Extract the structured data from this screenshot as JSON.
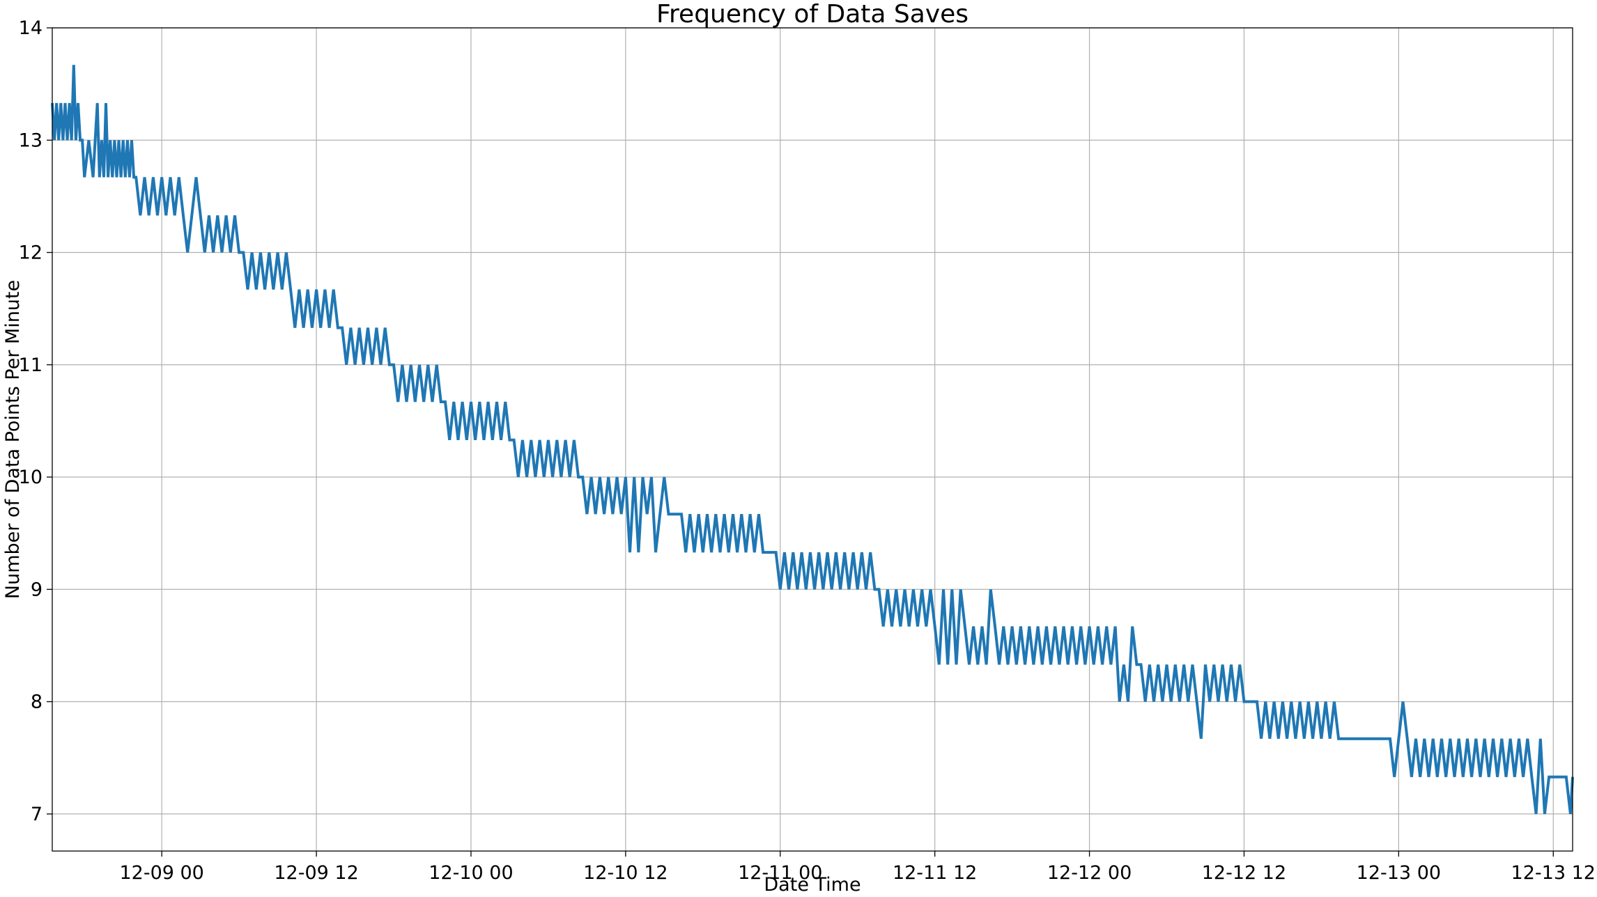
{
  "chart_data": {
    "type": "line",
    "title": "Frequency of Data Saves",
    "xlabel": "Date Time",
    "ylabel": "Number of Data Points Per Minute",
    "x_axis_type": "datetime",
    "xlim": [
      "2024-12-08 15:30",
      "2024-12-13 13:30"
    ],
    "ylim": [
      6.67,
      14
    ],
    "grid": true,
    "legend": "none",
    "x_ticks": [
      {
        "at": "2024-12-09 00:00",
        "label": "12-09 00"
      },
      {
        "at": "2024-12-09 12:00",
        "label": "12-09 12"
      },
      {
        "at": "2024-12-10 00:00",
        "label": "12-10 00"
      },
      {
        "at": "2024-12-10 12:00",
        "label": "12-10 12"
      },
      {
        "at": "2024-12-11 00:00",
        "label": "12-11 00"
      },
      {
        "at": "2024-12-11 12:00",
        "label": "12-11 12"
      },
      {
        "at": "2024-12-12 00:00",
        "label": "12-12 00"
      },
      {
        "at": "2024-12-12 12:00",
        "label": "12-12 12"
      },
      {
        "at": "2024-12-13 00:00",
        "label": "12-13 00"
      },
      {
        "at": "2024-12-13 12:00",
        "label": "12-13 12"
      }
    ],
    "y_ticks": [
      {
        "value": 7,
        "label": "7"
      },
      {
        "value": 8,
        "label": "8"
      },
      {
        "value": 9,
        "label": "9"
      },
      {
        "value": 10,
        "label": "10"
      },
      {
        "value": 11,
        "label": "11"
      },
      {
        "value": 12,
        "label": "12"
      },
      {
        "value": 13,
        "label": "13"
      },
      {
        "value": 14,
        "label": "14"
      }
    ],
    "series": [
      {
        "color": "#1f77b4",
        "x": [
          "2024-12-08 15:30",
          "2024-12-08 15:40",
          "2024-12-08 15:50",
          "2024-12-08 16:00",
          "2024-12-08 16:10",
          "2024-12-08 16:20",
          "2024-12-08 16:30",
          "2024-12-08 16:40",
          "2024-12-08 16:50",
          "2024-12-08 17:00",
          "2024-12-08 17:10",
          "2024-12-08 17:15",
          "2024-12-08 17:20",
          "2024-12-08 17:30",
          "2024-12-08 17:40",
          "2024-12-08 17:50",
          "2024-12-08 18:00",
          "2024-12-08 18:20",
          "2024-12-08 18:40",
          "2024-12-08 18:50",
          "2024-12-08 19:00",
          "2024-12-08 19:10",
          "2024-12-08 19:20",
          "2024-12-08 19:30",
          "2024-12-08 19:40",
          "2024-12-08 19:50",
          "2024-12-08 20:00",
          "2024-12-08 20:10",
          "2024-12-08 20:20",
          "2024-12-08 20:30",
          "2024-12-08 20:40",
          "2024-12-08 20:50",
          "2024-12-08 21:00",
          "2024-12-08 21:10",
          "2024-12-08 21:20",
          "2024-12-08 21:30",
          "2024-12-08 21:40",
          "2024-12-08 21:50",
          "2024-12-08 22:00",
          "2024-12-08 22:20",
          "2024-12-08 22:40",
          "2024-12-08 23:00",
          "2024-12-08 23:20",
          "2024-12-08 23:40",
          "2024-12-09 00:00",
          "2024-12-09 00:20",
          "2024-12-09 00:40",
          "2024-12-09 01:00",
          "2024-12-09 01:20",
          "2024-12-09 01:40",
          "2024-12-09 02:00",
          "2024-12-09 02:20",
          "2024-12-09 02:40",
          "2024-12-09 03:00",
          "2024-12-09 03:20",
          "2024-12-09 03:40",
          "2024-12-09 04:00",
          "2024-12-09 04:20",
          "2024-12-09 04:40",
          "2024-12-09 05:00",
          "2024-12-09 05:20",
          "2024-12-09 05:40",
          "2024-12-09 06:00",
          "2024-12-09 06:20",
          "2024-12-09 06:40",
          "2024-12-09 07:00",
          "2024-12-09 07:20",
          "2024-12-09 07:40",
          "2024-12-09 08:00",
          "2024-12-09 08:20",
          "2024-12-09 08:40",
          "2024-12-09 09:00",
          "2024-12-09 09:20",
          "2024-12-09 09:40",
          "2024-12-09 10:00",
          "2024-12-09 10:20",
          "2024-12-09 10:40",
          "2024-12-09 11:00",
          "2024-12-09 11:20",
          "2024-12-09 11:40",
          "2024-12-09 12:00",
          "2024-12-09 12:20",
          "2024-12-09 12:40",
          "2024-12-09 13:00",
          "2024-12-09 13:20",
          "2024-12-09 13:40",
          "2024-12-09 14:00",
          "2024-12-09 14:20",
          "2024-12-09 14:40",
          "2024-12-09 15:00",
          "2024-12-09 15:20",
          "2024-12-09 15:40",
          "2024-12-09 16:00",
          "2024-12-09 16:20",
          "2024-12-09 16:40",
          "2024-12-09 17:00",
          "2024-12-09 17:20",
          "2024-12-09 17:40",
          "2024-12-09 18:00",
          "2024-12-09 18:20",
          "2024-12-09 18:40",
          "2024-12-09 19:00",
          "2024-12-09 19:20",
          "2024-12-09 19:40",
          "2024-12-09 20:00",
          "2024-12-09 20:20",
          "2024-12-09 20:40",
          "2024-12-09 21:00",
          "2024-12-09 21:20",
          "2024-12-09 21:40",
          "2024-12-09 22:00",
          "2024-12-09 22:20",
          "2024-12-09 22:40",
          "2024-12-09 23:00",
          "2024-12-09 23:20",
          "2024-12-09 23:40",
          "2024-12-10 00:00",
          "2024-12-10 00:20",
          "2024-12-10 00:40",
          "2024-12-10 01:00",
          "2024-12-10 01:20",
          "2024-12-10 01:40",
          "2024-12-10 02:00",
          "2024-12-10 02:20",
          "2024-12-10 02:40",
          "2024-12-10 03:00",
          "2024-12-10 03:20",
          "2024-12-10 03:40",
          "2024-12-10 04:00",
          "2024-12-10 04:20",
          "2024-12-10 04:40",
          "2024-12-10 05:00",
          "2024-12-10 05:20",
          "2024-12-10 05:40",
          "2024-12-10 06:00",
          "2024-12-10 06:20",
          "2024-12-10 06:40",
          "2024-12-10 07:00",
          "2024-12-10 07:20",
          "2024-12-10 07:40",
          "2024-12-10 08:00",
          "2024-12-10 08:20",
          "2024-12-10 08:40",
          "2024-12-10 09:00",
          "2024-12-10 09:20",
          "2024-12-10 09:40",
          "2024-12-10 10:00",
          "2024-12-10 10:20",
          "2024-12-10 10:40",
          "2024-12-10 11:00",
          "2024-12-10 11:20",
          "2024-12-10 11:40",
          "2024-12-10 12:00",
          "2024-12-10 12:20",
          "2024-12-10 12:40",
          "2024-12-10 13:00",
          "2024-12-10 13:20",
          "2024-12-10 13:40",
          "2024-12-10 14:00",
          "2024-12-10 14:20",
          "2024-12-10 14:40",
          "2024-12-10 15:00",
          "2024-12-10 15:20",
          "2024-12-10 15:40",
          "2024-12-10 16:00",
          "2024-12-10 16:20",
          "2024-12-10 16:40",
          "2024-12-10 17:00",
          "2024-12-10 17:20",
          "2024-12-10 17:40",
          "2024-12-10 18:00",
          "2024-12-10 18:20",
          "2024-12-10 18:40",
          "2024-12-10 19:00",
          "2024-12-10 19:20",
          "2024-12-10 19:40",
          "2024-12-10 20:00",
          "2024-12-10 20:20",
          "2024-12-10 20:40",
          "2024-12-10 21:00",
          "2024-12-10 21:20",
          "2024-12-10 21:40",
          "2024-12-10 22:00",
          "2024-12-10 22:20",
          "2024-12-10 22:40",
          "2024-12-10 23:00",
          "2024-12-10 23:20",
          "2024-12-10 23:40",
          "2024-12-11 00:00",
          "2024-12-11 00:20",
          "2024-12-11 00:40",
          "2024-12-11 01:00",
          "2024-12-11 01:20",
          "2024-12-11 01:40",
          "2024-12-11 02:00",
          "2024-12-11 02:20",
          "2024-12-11 02:40",
          "2024-12-11 03:00",
          "2024-12-11 03:20",
          "2024-12-11 03:40",
          "2024-12-11 04:00",
          "2024-12-11 04:20",
          "2024-12-11 04:40",
          "2024-12-11 05:00",
          "2024-12-11 05:20",
          "2024-12-11 05:40",
          "2024-12-11 06:00",
          "2024-12-11 06:20",
          "2024-12-11 06:40",
          "2024-12-11 07:00",
          "2024-12-11 07:20",
          "2024-12-11 07:40",
          "2024-12-11 08:00",
          "2024-12-11 08:20",
          "2024-12-11 08:40",
          "2024-12-11 09:00",
          "2024-12-11 09:20",
          "2024-12-11 09:40",
          "2024-12-11 10:00",
          "2024-12-11 10:20",
          "2024-12-11 10:40",
          "2024-12-11 11:00",
          "2024-12-11 11:20",
          "2024-12-11 11:40",
          "2024-12-11 12:00",
          "2024-12-11 12:20",
          "2024-12-11 12:40",
          "2024-12-11 13:00",
          "2024-12-11 13:20",
          "2024-12-11 13:40",
          "2024-12-11 14:00",
          "2024-12-11 14:20",
          "2024-12-11 14:40",
          "2024-12-11 15:00",
          "2024-12-11 15:20",
          "2024-12-11 15:40",
          "2024-12-11 16:00",
          "2024-12-11 16:20",
          "2024-12-11 16:40",
          "2024-12-11 17:00",
          "2024-12-11 17:20",
          "2024-12-11 17:40",
          "2024-12-11 18:00",
          "2024-12-11 18:20",
          "2024-12-11 18:40",
          "2024-12-11 19:00",
          "2024-12-11 19:20",
          "2024-12-11 19:40",
          "2024-12-11 20:00",
          "2024-12-11 20:20",
          "2024-12-11 20:40",
          "2024-12-11 21:00",
          "2024-12-11 21:20",
          "2024-12-11 21:40",
          "2024-12-11 22:00",
          "2024-12-11 22:20",
          "2024-12-11 22:40",
          "2024-12-11 23:00",
          "2024-12-11 23:20",
          "2024-12-11 23:40",
          "2024-12-12 00:00",
          "2024-12-12 00:20",
          "2024-12-12 00:40",
          "2024-12-12 01:00",
          "2024-12-12 01:20",
          "2024-12-12 01:40",
          "2024-12-12 02:00",
          "2024-12-12 02:20",
          "2024-12-12 02:40",
          "2024-12-12 03:00",
          "2024-12-12 03:20",
          "2024-12-12 03:40",
          "2024-12-12 04:00",
          "2024-12-12 04:20",
          "2024-12-12 04:40",
          "2024-12-12 05:00",
          "2024-12-12 05:20",
          "2024-12-12 05:40",
          "2024-12-12 06:00",
          "2024-12-12 06:20",
          "2024-12-12 06:40",
          "2024-12-12 07:00",
          "2024-12-12 07:20",
          "2024-12-12 07:40",
          "2024-12-12 08:00",
          "2024-12-12 08:20",
          "2024-12-12 08:40",
          "2024-12-12 09:00",
          "2024-12-12 09:20",
          "2024-12-12 09:40",
          "2024-12-12 10:00",
          "2024-12-12 10:20",
          "2024-12-12 10:40",
          "2024-12-12 11:00",
          "2024-12-12 11:20",
          "2024-12-12 11:40",
          "2024-12-12 12:00",
          "2024-12-12 12:20",
          "2024-12-12 12:40",
          "2024-12-12 13:00",
          "2024-12-12 13:20",
          "2024-12-12 13:40",
          "2024-12-12 14:00",
          "2024-12-12 14:20",
          "2024-12-12 14:40",
          "2024-12-12 15:00",
          "2024-12-12 15:20",
          "2024-12-12 15:40",
          "2024-12-12 16:00",
          "2024-12-12 16:20",
          "2024-12-12 16:40",
          "2024-12-12 17:00",
          "2024-12-12 17:20",
          "2024-12-12 17:40",
          "2024-12-12 18:00",
          "2024-12-12 18:20",
          "2024-12-12 18:40",
          "2024-12-12 19:00",
          "2024-12-12 19:20",
          "2024-12-12 19:40",
          "2024-12-12 20:00",
          "2024-12-12 20:20",
          "2024-12-12 20:40",
          "2024-12-12 21:00",
          "2024-12-12 21:20",
          "2024-12-12 21:40",
          "2024-12-12 22:00",
          "2024-12-12 22:20",
          "2024-12-12 22:40",
          "2024-12-12 23:00",
          "2024-12-12 23:20",
          "2024-12-12 23:40",
          "2024-12-13 00:00",
          "2024-12-13 00:20",
          "2024-12-13 00:40",
          "2024-12-13 01:00",
          "2024-12-13 01:20",
          "2024-12-13 01:40",
          "2024-12-13 02:00",
          "2024-12-13 02:20",
          "2024-12-13 02:40",
          "2024-12-13 03:00",
          "2024-12-13 03:20",
          "2024-12-13 03:40",
          "2024-12-13 04:00",
          "2024-12-13 04:20",
          "2024-12-13 04:40",
          "2024-12-13 05:00",
          "2024-12-13 05:20",
          "2024-12-13 05:40",
          "2024-12-13 06:00",
          "2024-12-13 06:20",
          "2024-12-13 06:40",
          "2024-12-13 07:00",
          "2024-12-13 07:20",
          "2024-12-13 07:40",
          "2024-12-13 08:00",
          "2024-12-13 08:20",
          "2024-12-13 08:40",
          "2024-12-13 09:00",
          "2024-12-13 09:20",
          "2024-12-13 09:40",
          "2024-12-13 10:00",
          "2024-12-13 10:20",
          "2024-12-13 10:40",
          "2024-12-13 11:00",
          "2024-12-13 11:20",
          "2024-12-13 11:40",
          "2024-12-13 12:00",
          "2024-12-13 12:20",
          "2024-12-13 12:40",
          "2024-12-13 13:00",
          "2024-12-13 13:20",
          "2024-12-13 13:30"
        ],
        "y": [
          13.33,
          13.0,
          13.33,
          13.0,
          13.33,
          13.0,
          13.33,
          13.0,
          13.33,
          13.0,
          13.67,
          13.33,
          13.0,
          13.33,
          13.0,
          13.0,
          12.67,
          13.0,
          12.67,
          13.0,
          13.33,
          12.67,
          13.0,
          12.67,
          13.33,
          12.67,
          13.0,
          12.67,
          13.0,
          12.67,
          13.0,
          12.67,
          13.0,
          12.67,
          13.0,
          12.67,
          13.0,
          12.67,
          12.67,
          12.33,
          12.67,
          12.33,
          12.67,
          12.33,
          12.67,
          12.33,
          12.67,
          12.33,
          12.67,
          12.33,
          12.0,
          12.33,
          12.67,
          12.33,
          12.0,
          12.33,
          12.0,
          12.33,
          12.0,
          12.33,
          12.0,
          12.33,
          12.0,
          12.0,
          11.67,
          12.0,
          11.67,
          12.0,
          11.67,
          12.0,
          11.67,
          12.0,
          11.67,
          12.0,
          11.67,
          11.33,
          11.67,
          11.33,
          11.67,
          11.33,
          11.67,
          11.33,
          11.67,
          11.33,
          11.67,
          11.33,
          11.33,
          11.0,
          11.33,
          11.0,
          11.33,
          11.0,
          11.33,
          11.0,
          11.33,
          11.0,
          11.33,
          11.0,
          11.0,
          10.67,
          11.0,
          10.67,
          11.0,
          10.67,
          11.0,
          10.67,
          11.0,
          10.67,
          11.0,
          10.67,
          10.67,
          10.33,
          10.67,
          10.33,
          10.67,
          10.33,
          10.67,
          10.33,
          10.67,
          10.33,
          10.67,
          10.33,
          10.67,
          10.33,
          10.67,
          10.33,
          10.33,
          10.0,
          10.33,
          10.0,
          10.33,
          10.0,
          10.33,
          10.0,
          10.33,
          10.0,
          10.33,
          10.0,
          10.33,
          10.0,
          10.33,
          10.0,
          10.0,
          9.67,
          10.0,
          9.67,
          10.0,
          9.67,
          10.0,
          9.67,
          10.0,
          9.67,
          10.0,
          9.33,
          10.0,
          9.33,
          10.0,
          9.67,
          10.0,
          9.33,
          9.67,
          10.0,
          9.67,
          9.67,
          9.67,
          9.67,
          9.33,
          9.67,
          9.33,
          9.67,
          9.33,
          9.67,
          9.33,
          9.67,
          9.33,
          9.67,
          9.33,
          9.67,
          9.33,
          9.67,
          9.33,
          9.67,
          9.33,
          9.67,
          9.33,
          9.33,
          9.33,
          9.33,
          9.0,
          9.33,
          9.0,
          9.33,
          9.0,
          9.33,
          9.0,
          9.33,
          9.0,
          9.33,
          9.0,
          9.33,
          9.0,
          9.33,
          9.0,
          9.33,
          9.0,
          9.33,
          9.0,
          9.33,
          9.0,
          9.33,
          9.0,
          9.0,
          8.67,
          9.0,
          8.67,
          9.0,
          8.67,
          9.0,
          8.67,
          9.0,
          8.67,
          9.0,
          8.67,
          9.0,
          8.67,
          8.33,
          9.0,
          8.33,
          9.0,
          8.33,
          9.0,
          8.67,
          8.33,
          8.67,
          8.33,
          8.67,
          8.33,
          9.0,
          8.67,
          8.33,
          8.67,
          8.33,
          8.67,
          8.33,
          8.67,
          8.33,
          8.67,
          8.33,
          8.67,
          8.33,
          8.67,
          8.33,
          8.67,
          8.33,
          8.67,
          8.33,
          8.67,
          8.33,
          8.67,
          8.33,
          8.67,
          8.33,
          8.67,
          8.33,
          8.67,
          8.33,
          8.67,
          8.0,
          8.33,
          8.0,
          8.67,
          8.33,
          8.33,
          8.0,
          8.33,
          8.0,
          8.33,
          8.0,
          8.33,
          8.0,
          8.33,
          8.0,
          8.33,
          8.0,
          8.33,
          8.0,
          7.67,
          8.33,
          8.0,
          8.33,
          8.0,
          8.33,
          8.0,
          8.33,
          8.0,
          8.33,
          8.0,
          8.0,
          8.0,
          8.0,
          7.67,
          8.0,
          7.67,
          8.0,
          7.67,
          8.0,
          7.67,
          8.0,
          7.67,
          8.0,
          7.67,
          8.0,
          7.67,
          8.0,
          7.67,
          8.0,
          7.67,
          8.0,
          7.67,
          7.67,
          7.67,
          7.67,
          7.67,
          7.67,
          7.67,
          7.67,
          7.67,
          7.67,
          7.67,
          7.67,
          7.67,
          7.33,
          7.67,
          8.0,
          7.67,
          7.33,
          7.67,
          7.33,
          7.67,
          7.33,
          7.67,
          7.33,
          7.67,
          7.33,
          7.67,
          7.33,
          7.67,
          7.33,
          7.67,
          7.33,
          7.67,
          7.33,
          7.67,
          7.33,
          7.67,
          7.33,
          7.67,
          7.33,
          7.67,
          7.33,
          7.67,
          7.33,
          7.67,
          7.33,
          7.0,
          7.67,
          7.0,
          7.33,
          7.33,
          7.33,
          7.33,
          7.33,
          7.0,
          7.33
        ]
      }
    ]
  }
}
